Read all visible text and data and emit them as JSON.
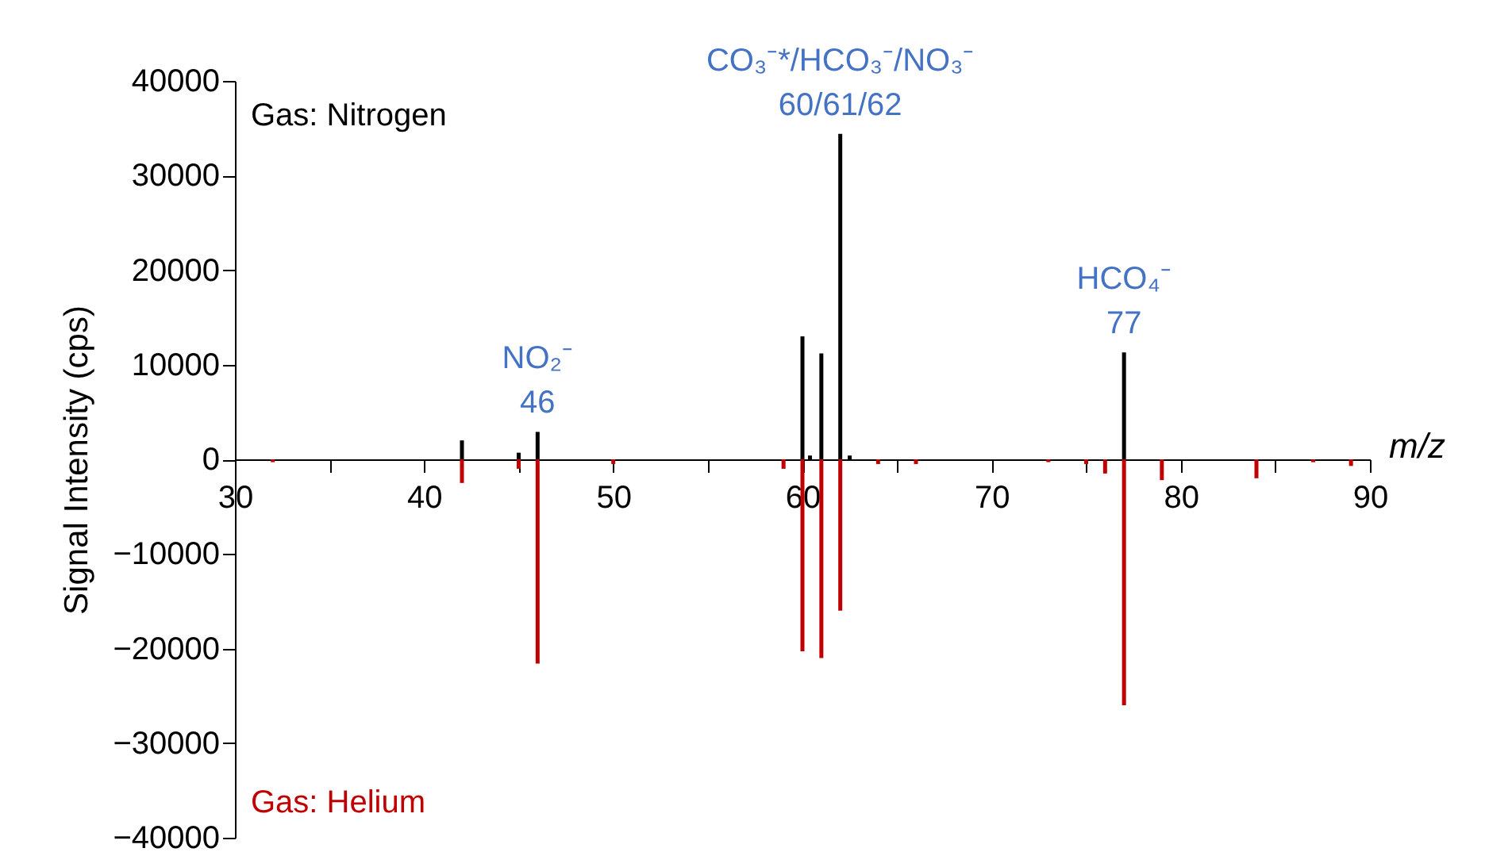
{
  "chart_data": {
    "type": "bar",
    "xlabel": "m/z",
    "ylabel": "Signal Intensity (cps)",
    "xlim": [
      30,
      90
    ],
    "xticks": [
      30,
      {
        "value": 35,
        "label": null
      },
      40,
      {
        "value": 45,
        "label": null
      },
      50,
      {
        "value": 55,
        "label": null
      },
      60,
      {
        "value": 65,
        "label": null
      },
      70,
      {
        "value": 75,
        "label": null
      },
      80,
      {
        "value": 85,
        "label": null
      },
      90
    ],
    "ylim": [
      -40000,
      40000
    ],
    "yticks": [
      -40000,
      -30000,
      -20000,
      -10000,
      0,
      10000,
      20000,
      30000,
      40000
    ],
    "grid": false,
    "series": [
      {
        "name": "Gas: Nitrogen",
        "color": "#000000",
        "x": [
          42,
          45,
          46,
          60,
          60.4,
          61,
          62,
          62.5,
          77
        ],
        "values": [
          2000,
          700,
          2900,
          13000,
          400,
          11200,
          34400,
          400,
          11300
        ]
      },
      {
        "name": "Gas: Helium",
        "color": "#c00000",
        "x": [
          32,
          42,
          45,
          46,
          50,
          59,
          60,
          61,
          62,
          64,
          66,
          73,
          75,
          76,
          77,
          79,
          84,
          87,
          89
        ],
        "values": [
          -300,
          -2500,
          -1000,
          -21600,
          -500,
          -1000,
          -20300,
          -21000,
          -16000,
          -500,
          -500,
          -300,
          -500,
          -1500,
          -26000,
          -2200,
          -2000,
          -300,
          -700
        ]
      }
    ],
    "annotations": [
      {
        "text": "NO₂⁻",
        "x": 46,
        "y": 2900
      },
      "46",
      {
        "text": "CO₃⁻*/HCO₃⁻/NO₃⁻",
        "x": 62,
        "y": 34400
      },
      "60/61/62",
      {
        "text": "HCO₄⁻",
        "x": 77,
        "y": 11300
      },
      "77"
    ]
  }
}
